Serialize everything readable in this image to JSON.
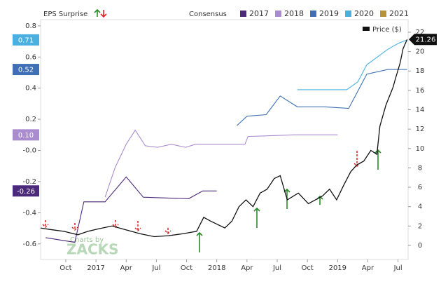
{
  "chart_data": {
    "type": "line",
    "title": "EPS Surprise",
    "legend_title": "Consensus",
    "legend_extra": [
      {
        "name": "2021",
        "color": "#b8913b"
      }
    ],
    "watermark": [
      "Charts by",
      "ZACKS"
    ],
    "xlim": [
      6.5,
      43
    ],
    "xticks": [
      {
        "value": 9,
        "label": "Oct"
      },
      {
        "value": 12,
        "label": "2017"
      },
      {
        "value": 15,
        "label": "Apr"
      },
      {
        "value": 18,
        "label": "Jul"
      },
      {
        "value": 21,
        "label": "Oct"
      },
      {
        "value": 24,
        "label": "2018"
      },
      {
        "value": 27,
        "label": "Apr"
      },
      {
        "value": 30,
        "label": "Jul"
      },
      {
        "value": 33,
        "label": "Oct"
      },
      {
        "value": 36,
        "label": "2019"
      },
      {
        "value": 39,
        "label": "Apr"
      },
      {
        "value": 42,
        "label": "Jul"
      }
    ],
    "ylim": [
      -0.7,
      0.84
    ],
    "yticks": [
      0.8,
      0.6,
      0.4,
      0.2,
      {
        "value": 0,
        "label": "-0.0"
      },
      -0.2,
      -0.4,
      -0.6
    ],
    "y2lim": [
      -1.45,
      23.3
    ],
    "y2ticks": [
      0,
      2,
      4,
      6,
      8,
      10,
      12,
      14,
      16,
      18,
      20,
      22
    ],
    "series": [
      {
        "name": "2017",
        "color": "#4b2a7b",
        "label": "-0.26",
        "x": [
          7.0,
          9.9,
          10.8,
          12.9,
          15.0,
          16.7,
          21.2,
          22.6,
          24.0
        ],
        "values": [
          -0.56,
          -0.59,
          -0.33,
          -0.33,
          -0.17,
          -0.3,
          -0.31,
          -0.26,
          -0.26
        ]
      },
      {
        "name": "2018",
        "color": "#a98ccf",
        "label": "0.10",
        "x": [
          12.9,
          13.9,
          15.0,
          15.9,
          16.9,
          18.1,
          19.5,
          20.9,
          21.9,
          26.8,
          27.1,
          31.7,
          36.0
        ],
        "values": [
          -0.3,
          -0.11,
          0.04,
          0.13,
          0.03,
          0.02,
          0.04,
          0.02,
          0.04,
          0.04,
          0.09,
          0.1,
          0.1
        ]
      },
      {
        "name": "2019",
        "color": "#3f6fb5",
        "label": "0.52",
        "x": [
          26.0,
          27.0,
          28.9,
          30.3,
          32.0,
          34.8,
          37.1,
          38.9,
          41.0,
          41.9,
          42.9
        ],
        "values": [
          0.16,
          0.22,
          0.23,
          0.35,
          0.28,
          0.28,
          0.27,
          0.49,
          0.52,
          0.52,
          0.52
        ]
      },
      {
        "name": "2020",
        "color": "#4ab0e0",
        "label": "0.71",
        "x": [
          32.0,
          36.9,
          38.0,
          38.9,
          41.0,
          42.1,
          42.9
        ],
        "values": [
          0.39,
          0.39,
          0.44,
          0.55,
          0.65,
          0.69,
          0.71
        ]
      },
      {
        "name": "Price ($)",
        "color": "#111111",
        "axis": "y2",
        "label": "21.26",
        "x": [
          6.5,
          7.4,
          8.8,
          10.2,
          11.2,
          12.2,
          13.6,
          15.0,
          16.4,
          17.8,
          19.2,
          20.6,
          22.0,
          22.7,
          23.4,
          24.8,
          25.5,
          26.2,
          26.9,
          27.6,
          28.3,
          29.0,
          29.7,
          30.3,
          31.0,
          32.1,
          33.1,
          34.5,
          35.2,
          35.9,
          36.6,
          37.3,
          37.9,
          38.6,
          39.3,
          39.9,
          40.2,
          40.8,
          41.5,
          41.8,
          42.2,
          42.5,
          42.9
        ],
        "values": [
          1.8,
          1.65,
          1.45,
          1.1,
          1.45,
          1.7,
          2.0,
          1.6,
          1.2,
          0.9,
          1.0,
          1.2,
          1.45,
          2.9,
          2.5,
          1.8,
          2.5,
          4.0,
          4.7,
          4.0,
          5.4,
          5.8,
          6.9,
          7.2,
          4.7,
          5.4,
          4.3,
          5.1,
          5.8,
          4.7,
          6.2,
          7.6,
          8.3,
          8.7,
          9.8,
          9.4,
          12.3,
          14.5,
          16.3,
          17.4,
          18.8,
          20.3,
          21.26
        ]
      }
    ]
  }
}
